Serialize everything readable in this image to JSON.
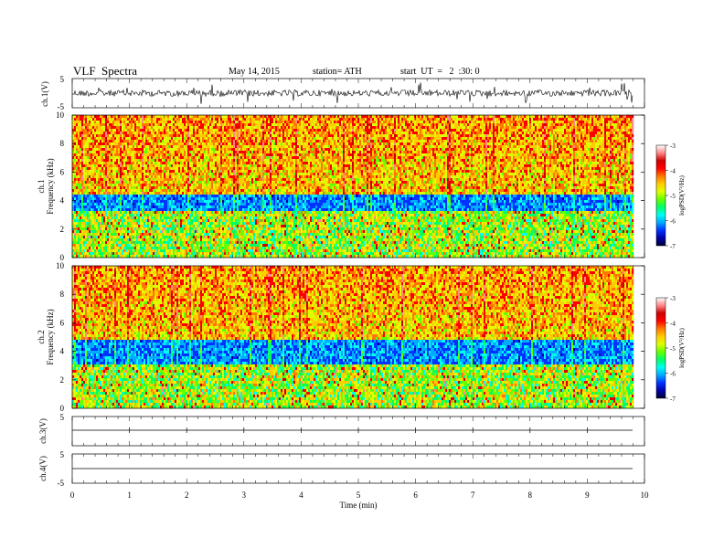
{
  "header": {
    "title": "VLF  Spectra",
    "date": "May 14, 2015",
    "station": "station= ATH",
    "start": "start  UT  =   2  :30: 0"
  },
  "colors": {
    "colormap": [
      "#000033",
      "#0000aa",
      "#0033ff",
      "#00aaff",
      "#00ffee",
      "#00ff66",
      "#66ff00",
      "#ddff00",
      "#ffcc00",
      "#ff7700",
      "#ff0000",
      "#cc0000",
      "#ff8888",
      "#ffffff"
    ]
  },
  "chart_data": [
    {
      "type": "line",
      "panel": "ch1",
      "ylabel": "ch.1(V)",
      "ylim": [
        -5,
        5
      ],
      "yticks": [
        "5",
        "-5"
      ],
      "xlim": [
        0,
        10
      ],
      "description_values": {
        "baseline": 0,
        "noise_amplitude": 1.2
      }
    },
    {
      "type": "heatmap",
      "panel": "ch1-spectrogram",
      "ylabel": "Frequency (kHz)",
      "channel_label": "ch.1",
      "ylim": [
        0,
        10
      ],
      "yticks": [
        "0",
        "2",
        "4",
        "6",
        "8",
        "10"
      ],
      "xlim": [
        0,
        10
      ],
      "colorbar": {
        "label": "logPSD(V²/Hz)",
        "range": [
          -7,
          -3
        ],
        "ticks": [
          "-3",
          "-4",
          "-5",
          "-6",
          "-7"
        ]
      },
      "bands_kHz": {
        "low_level_below": 3.2,
        "dip_band": [
          3.2,
          4.5
        ],
        "high_level_above": 4.5
      }
    },
    {
      "type": "heatmap",
      "panel": "ch2-spectrogram",
      "ylabel": "Frequency (kHz)",
      "channel_label": "ch.2",
      "ylim": [
        0,
        10
      ],
      "yticks": [
        "0",
        "2",
        "4",
        "6",
        "8",
        "10"
      ],
      "xlim": [
        0,
        10
      ],
      "colorbar": {
        "label": "logPSD(V²/Hz)",
        "range": [
          -7,
          -3
        ],
        "ticks": [
          "-3",
          "-4",
          "-5",
          "-6",
          "-7"
        ]
      },
      "bands_kHz": {
        "low_level_below": 3.0,
        "dip_band": [
          3.0,
          4.8
        ],
        "high_level_above": 4.8
      }
    },
    {
      "type": "line",
      "panel": "ch3",
      "ylabel": "ch.3(V)",
      "ylim": [
        -5,
        5
      ],
      "yticks": [
        "5"
      ],
      "xlim": [
        0,
        10
      ],
      "description_values": {
        "baseline": 0
      }
    },
    {
      "type": "line",
      "panel": "ch4",
      "ylabel": "ch.4(V)",
      "ylim": [
        -5,
        5
      ],
      "yticks": [
        "5",
        "-5"
      ],
      "xlim": [
        0,
        10
      ],
      "description_values": {
        "baseline": 0
      }
    },
    {
      "type": "axis",
      "panel": "time-axis",
      "xlabel": "Time  (min)",
      "xlim": [
        0,
        10
      ],
      "xticks": [
        "0",
        "1",
        "2",
        "3",
        "4",
        "5",
        "6",
        "7",
        "8",
        "9",
        "10"
      ],
      "data_end_min": 9.8
    }
  ]
}
